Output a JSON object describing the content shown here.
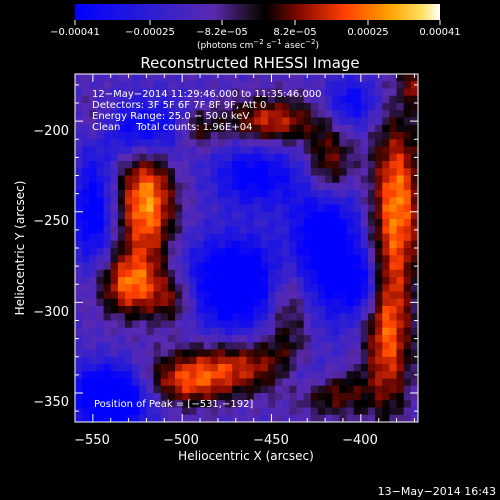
{
  "chart_data": {
    "type": "heatmap",
    "title": "Reconstructed RHESSI Image",
    "xlabel": "Heliocentric X (arcsec)",
    "ylabel": "Heliocentric Y (arcsec)",
    "xlim": [
      -560,
      -368
    ],
    "ylim": [
      -366,
      -174
    ],
    "x_ticks": [
      -550,
      -500,
      -450,
      -400
    ],
    "x_tick_labels": [
      "−550",
      "−500",
      "−450",
      "−400"
    ],
    "y_ticks": [
      -350,
      -300,
      -250,
      -200
    ],
    "y_tick_labels": [
      "−350",
      "−300",
      "−250",
      "−200"
    ],
    "colorbar": {
      "min": -0.00041,
      "max": 0.00041,
      "tick_labels": [
        "−0.00041",
        "−0.00025",
        "−8.2e−05",
        "8.2e−05",
        "0.00025",
        "0.00041"
      ],
      "unit_prefix": "(photons cm",
      "unit_exp1": "−2",
      "unit_mid": " s",
      "unit_exp2": "−1",
      "unit_suffix": " asec",
      "unit_exp3": "−2",
      "unit_close": ")"
    },
    "annotations": [
      "12−May−2014 11:29:46.000 to 11:35:46.000",
      "Detectors: 3F 5F 6F 7F 8F 9F, Att 0",
      "Energy Range: 25.0 − 50.0 keV",
      "Clean     Total counts: 1.96E+04"
    ],
    "peak_label": "Position of Peak = [−531,−192]",
    "peak_position": [
      -531,
      -192
    ],
    "blobs": [
      {
        "x": -520,
        "y": -245,
        "sx": 11,
        "sy": 24,
        "amp": 1.05
      },
      {
        "x": -530,
        "y": -290,
        "sx": 12,
        "sy": 12,
        "amp": 0.85
      },
      {
        "x": -505,
        "y": -298,
        "sx": 10,
        "sy": 10,
        "amp": 0.55
      },
      {
        "x": -492,
        "y": -205,
        "sx": 9,
        "sy": 8,
        "amp": 0.55
      },
      {
        "x": -450,
        "y": -200,
        "sx": 18,
        "sy": 9,
        "amp": 0.75
      },
      {
        "x": -418,
        "y": -225,
        "sx": 10,
        "sy": 16,
        "amp": 0.85
      },
      {
        "x": -380,
        "y": -245,
        "sx": 10,
        "sy": 32,
        "amp": 1.0
      },
      {
        "x": -385,
        "y": -320,
        "sx": 9,
        "sy": 28,
        "amp": 0.85
      },
      {
        "x": -440,
        "y": -300,
        "sx": 10,
        "sy": 20,
        "amp": 0.65
      },
      {
        "x": -470,
        "y": -335,
        "sx": 25,
        "sy": 10,
        "amp": 0.7
      },
      {
        "x": -500,
        "y": -345,
        "sx": 18,
        "sy": 9,
        "amp": 0.65
      },
      {
        "x": -415,
        "y": -350,
        "sx": 14,
        "sy": 9,
        "amp": 0.55
      },
      {
        "x": -365,
        "y": -180,
        "sx": 8,
        "sy": 8,
        "amp": 0.7
      },
      {
        "x": -548,
        "y": -200,
        "sx": 8,
        "sy": 10,
        "amp": 0.3
      },
      {
        "x": -470,
        "y": -290,
        "sx": 20,
        "sy": 18,
        "amp": -1.05
      },
      {
        "x": -420,
        "y": -265,
        "sx": 14,
        "sy": 30,
        "amp": -0.95
      },
      {
        "x": -540,
        "y": -352,
        "sx": 16,
        "sy": 12,
        "amp": -1.15
      },
      {
        "x": -520,
        "y": -205,
        "sx": 18,
        "sy": 12,
        "amp": -0.8
      },
      {
        "x": -550,
        "y": -250,
        "sx": 8,
        "sy": 22,
        "amp": -0.75
      },
      {
        "x": -400,
        "y": -290,
        "sx": 8,
        "sy": 12,
        "amp": -0.6
      },
      {
        "x": -460,
        "y": -230,
        "sx": 16,
        "sy": 12,
        "amp": -0.7
      },
      {
        "x": -405,
        "y": -190,
        "sx": 10,
        "sy": 10,
        "amp": -0.6
      },
      {
        "x": -430,
        "y": -340,
        "sx": 12,
        "sy": 8,
        "amp": -0.4
      }
    ]
  },
  "footer": {
    "timestamp": "13−May−2014 16:43"
  }
}
